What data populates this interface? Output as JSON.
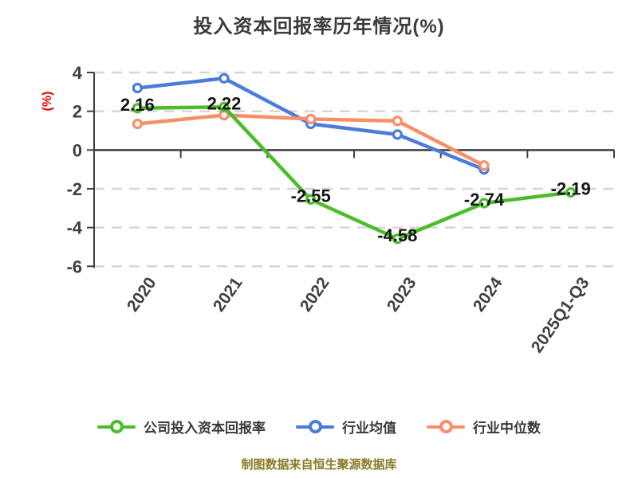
{
  "chart_data": {
    "type": "line",
    "title": "投入资本回报率历年情况(%)",
    "ylabel": "(%)",
    "source_note": "制图数据来自恒生聚源数据库",
    "categories": [
      "2020",
      "2021",
      "2022",
      "2023",
      "2024",
      "2025Q1-Q3"
    ],
    "series": [
      {
        "name": "公司投入资本回报率",
        "color": "#4bbd2a",
        "values": [
          2.16,
          2.22,
          -2.55,
          -4.58,
          -2.74,
          -2.19
        ],
        "show_point_labels": true
      },
      {
        "name": "行业均值",
        "color": "#4a7cdb",
        "values": [
          3.2,
          3.7,
          1.35,
          0.8,
          -1.0,
          null
        ],
        "show_point_labels": false
      },
      {
        "name": "行业中位数",
        "color": "#f78f68",
        "values": [
          1.35,
          1.8,
          1.6,
          1.5,
          -0.8,
          null
        ],
        "show_point_labels": false
      }
    ],
    "y_ticks": [
      4,
      2,
      0,
      -2,
      -4,
      -6
    ],
    "ylim": [
      -6,
      4
    ],
    "grid": "dashed-horizontal",
    "legend_position": "bottom",
    "colors": {
      "axis": "#3f3f3f",
      "gridline": "#d6d6d6",
      "tick_label": "#3f3f3f",
      "point_label": "#161616",
      "title": "#3c3c3c",
      "unit_label": "#e60000",
      "source_note": "#8b7a26"
    }
  }
}
